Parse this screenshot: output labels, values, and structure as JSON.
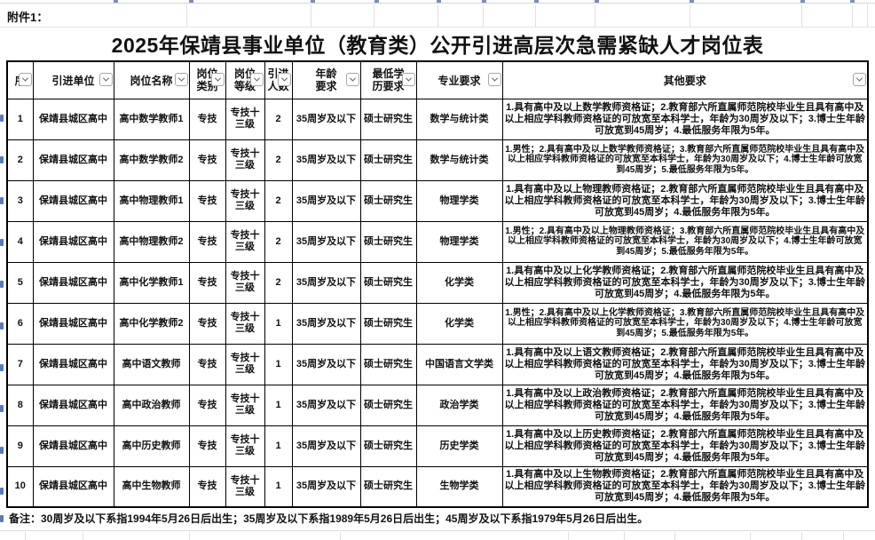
{
  "attachment_label": "附件1：",
  "title": "2025年保靖县事业单位（教育类）公开引进高层次急需紧缺人才岗位表",
  "columns": [
    {
      "key": "seq",
      "label": "序"
    },
    {
      "key": "unit",
      "label": "引进单位"
    },
    {
      "key": "post",
      "label": "岗位名称"
    },
    {
      "key": "category",
      "label": "岗位\n类别"
    },
    {
      "key": "grade",
      "label": "岗位\n等级"
    },
    {
      "key": "count",
      "label": "引进\n人数"
    },
    {
      "key": "age",
      "label": "年龄\n要求"
    },
    {
      "key": "degree",
      "label": "最低学\n历要求"
    },
    {
      "key": "major",
      "label": "专业要求"
    },
    {
      "key": "other",
      "label": "其他要求"
    }
  ],
  "rows": [
    {
      "seq": "1",
      "unit": "保靖县城区高中",
      "post": "高中数学教师1",
      "category": "专技",
      "grade": "专技十三级",
      "count": "2",
      "age": "35周岁及以下",
      "degree": "硕士研究生",
      "major": "数学与统计类",
      "other": "1.具有高中及以上数学教师资格证；2.教育部六所直属师范院校毕业生且具有高中及以上相应学科教师资格证的可放宽至本科学士，年龄为30周岁及以下；3.博士生年龄可放宽到45周岁；4.最低服务年限为5年。"
    },
    {
      "seq": "2",
      "unit": "保靖县城区高中",
      "post": "高中数学教师2",
      "category": "专技",
      "grade": "专技十三级",
      "count": "2",
      "age": "35周岁及以下",
      "degree": "硕士研究生",
      "major": "数学与统计类",
      "other": "1.男性；2.具有高中及以上数学教师资格证；3.教育部六所直属师范院校毕业生且具有高中及以上相应学科教师资格证的可放宽至本科学士，年龄为30周岁及以下；4.博士生年龄可放宽到45周岁；5.最低服务年限为5年。"
    },
    {
      "seq": "3",
      "unit": "保靖县城区高中",
      "post": "高中物理教师1",
      "category": "专技",
      "grade": "专技十三级",
      "count": "2",
      "age": "35周岁及以下",
      "degree": "硕士研究生",
      "major": "物理学类",
      "other": "1.具有高中及以上物理教师资格证；2.教育部六所直属师范院校毕业生且具有高中及以上相应学科教师资格证的可放宽至本科学士，年龄为30周岁及以下；3.博士生年龄可放宽到45周岁；4.最低服务年限为5年。"
    },
    {
      "seq": "4",
      "unit": "保靖县城区高中",
      "post": "高中物理教师2",
      "category": "专技",
      "grade": "专技十三级",
      "count": "2",
      "age": "35周岁及以下",
      "degree": "硕士研究生",
      "major": "物理学类",
      "other": "1.男性；2.具有高中及以上物理教师资格证；3.教育部六所直属师范院校毕业生且具有高中及以上相应学科教师资格证的可放宽至本科学士，年龄为30周岁及以下；4.博士生年龄可放宽到45周岁；5.最低服务年限为5年。"
    },
    {
      "seq": "5",
      "unit": "保靖县城区高中",
      "post": "高中化学教师1",
      "category": "专技",
      "grade": "专技十三级",
      "count": "2",
      "age": "35周岁及以下",
      "degree": "硕士研究生",
      "major": "化学类",
      "other": "1.具有高中及以上化学教师资格证；2.教育部六所直属师范院校毕业生且具有高中及以上相应学科教师资格证的可放宽至本科学士，年龄为30周岁及以下；3.博士生年龄可放宽到45周岁；4.最低服务年限为5年。"
    },
    {
      "seq": "6",
      "unit": "保靖县城区高中",
      "post": "高中化学教师2",
      "category": "专技",
      "grade": "专技十三级",
      "count": "1",
      "age": "35周岁及以下",
      "degree": "硕士研究生",
      "major": "化学类",
      "other": "1.男性；2.具有高中及以上化学教师资格证；3.教育部六所直属师范院校毕业生且具有高中及以上相应学科教师资格证的可放宽至本科学士，年龄为30周岁及以下；4.博士生年龄可放宽到45周岁；5.最低服务年限为5年。"
    },
    {
      "seq": "7",
      "unit": "保靖县城区高中",
      "post": "高中语文教师",
      "category": "专技",
      "grade": "专技十三级",
      "count": "1",
      "age": "35周岁及以下",
      "degree": "硕士研究生",
      "major": "中国语言文学类",
      "other": "1.具有高中及以上语文教师资格证；2.教育部六所直属师范院校毕业生且具有高中及以上相应学科教师资格证的可放宽至本科学士，年龄为30周岁及以下；3.博士生年龄可放宽到45周岁；4.最低服务年限为5年。"
    },
    {
      "seq": "8",
      "unit": "保靖县城区高中",
      "post": "高中政治教师",
      "category": "专技",
      "grade": "专技十三级",
      "count": "1",
      "age": "35周岁及以下",
      "degree": "硕士研究生",
      "major": "政治学类",
      "other": "1.具有高中及以上政治教师资格证；2.教育部六所直属师范院校毕业生且具有高中及以上相应学科教师资格证的可放宽至本科学士，年龄为30周岁及以下；3.博士生年龄可放宽到45周岁；4.最低服务年限为5年。"
    },
    {
      "seq": "9",
      "unit": "保靖县城区高中",
      "post": "高中历史教师",
      "category": "专技",
      "grade": "专技十三级",
      "count": "1",
      "age": "35周岁及以下",
      "degree": "硕士研究生",
      "major": "历史学类",
      "other": "1.具有高中及以上历史教师资格证；2.教育部六所直属师范院校毕业生且具有高中及以上相应学科教师资格证的可放宽至本科学士，年龄为30周岁及以下；3.博士生年龄可放宽到45周岁；4.最低服务年限为5年。"
    },
    {
      "seq": "10",
      "unit": "保靖县城区高中",
      "post": "高中生物教师",
      "category": "专技",
      "grade": "专技十三级",
      "count": "1",
      "age": "35周岁及以下",
      "degree": "硕士研究生",
      "major": "生物学类",
      "other": "1.具有高中及以上生物教师资格证；2.教育部六所直属师范院校毕业生且具有高中及以上相应学科教师资格证的可放宽至本科学士，年龄为30周岁及以下；3.博士生年龄可放宽到45周岁；4.最低服务年限为5年。"
    }
  ],
  "note": "备注：30周岁及以下系指1994年5月26日后出生；35周岁及以下系指1989年5月26日后出生；45周岁及以下系指1979年5月26日后出生。",
  "icons": {
    "filter": "chevron-down-icon"
  },
  "colors": {
    "border": "#000000",
    "gridline": "#e0e0e0",
    "clipped_row_numbers": "#5b79b5",
    "text": "#111111"
  }
}
